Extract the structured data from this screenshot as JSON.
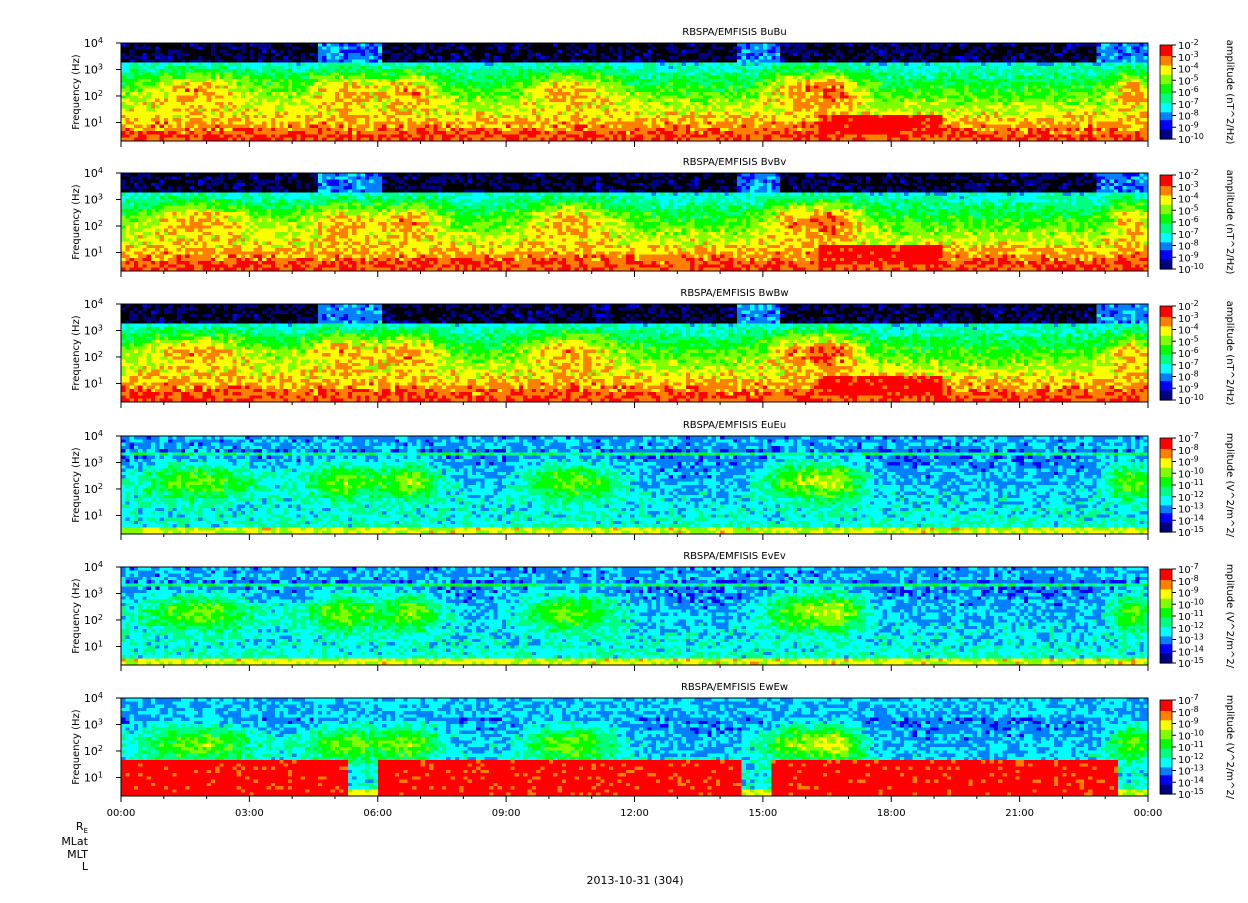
{
  "chart_data": [
    {
      "type": "heatmap",
      "title": "RBSPA/EMFISIS  BuBu",
      "ylabel": "Frequency (Hz)",
      "yscale": "log",
      "ylim": [
        2,
        10000
      ],
      "y_ticks": [
        "10^1",
        "10^2",
        "10^3",
        "10^4"
      ],
      "colorbar_label": "amplitude (nT^2/Hz)",
      "colorbar_ticks": [
        "10^-2",
        "10^-3",
        "10^-4",
        "10^-5",
        "10^-6",
        "10^-7",
        "10^-8",
        "10^-9",
        "10^-10"
      ],
      "colorbar_range": [
        -10,
        -2
      ]
    },
    {
      "type": "heatmap",
      "title": "RBSPA/EMFISIS  BvBv",
      "ylabel": "Frequency (Hz)",
      "yscale": "log",
      "ylim": [
        2,
        10000
      ],
      "y_ticks": [
        "10^1",
        "10^2",
        "10^3",
        "10^4"
      ],
      "colorbar_label": "amplitude (nT^2/Hz)",
      "colorbar_ticks": [
        "10^-2",
        "10^-3",
        "10^-4",
        "10^-5",
        "10^-6",
        "10^-7",
        "10^-8",
        "10^-9",
        "10^-10"
      ],
      "colorbar_range": [
        -10,
        -2
      ]
    },
    {
      "type": "heatmap",
      "title": "RBSPA/EMFISIS  BwBw",
      "ylabel": "Frequency (Hz)",
      "yscale": "log",
      "ylim": [
        2,
        10000
      ],
      "y_ticks": [
        "10^1",
        "10^2",
        "10^3",
        "10^4"
      ],
      "colorbar_label": "amplitude (nT^2/Hz)",
      "colorbar_ticks": [
        "10^-2",
        "10^-3",
        "10^-4",
        "10^-5",
        "10^-6",
        "10^-7",
        "10^-8",
        "10^-9",
        "10^-10"
      ],
      "colorbar_range": [
        -10,
        -2
      ]
    },
    {
      "type": "heatmap",
      "title": "RBSPA/EMFISIS  EuEu",
      "ylabel": "Frequency (Hz)",
      "yscale": "log",
      "ylim": [
        2,
        10000
      ],
      "y_ticks": [
        "10^1",
        "10^2",
        "10^3",
        "10^4"
      ],
      "colorbar_label": "mplitude (V^2/m^2/",
      "colorbar_ticks": [
        "10^-7",
        "10^-8",
        "10^-9",
        "10^-10",
        "10^-11",
        "10^-12",
        "10^-13",
        "10^-14",
        "10^-15"
      ],
      "colorbar_range": [
        -15,
        -7
      ]
    },
    {
      "type": "heatmap",
      "title": "RBSPA/EMFISIS  EvEv",
      "ylabel": "Frequency (Hz)",
      "yscale": "log",
      "ylim": [
        2,
        10000
      ],
      "y_ticks": [
        "10^1",
        "10^2",
        "10^3",
        "10^4"
      ],
      "colorbar_label": "mplitude (V^2/m^2/",
      "colorbar_ticks": [
        "10^-7",
        "10^-8",
        "10^-9",
        "10^-10",
        "10^-11",
        "10^-12",
        "10^-13",
        "10^-14",
        "10^-15"
      ],
      "colorbar_range": [
        -15,
        -7
      ]
    },
    {
      "type": "heatmap",
      "title": "RBSPA/EMFISIS  EwEw",
      "ylabel": "Frequency (Hz)",
      "yscale": "log",
      "ylim": [
        2,
        10000
      ],
      "y_ticks": [
        "10^1",
        "10^2",
        "10^3",
        "10^4"
      ],
      "colorbar_label": "mplitude (V^2/m^2/",
      "colorbar_ticks": [
        "10^-7",
        "10^-8",
        "10^-9",
        "10^-10",
        "10^-11",
        "10^-12",
        "10^-13",
        "10^-14",
        "10^-15"
      ],
      "colorbar_range": [
        -15,
        -7
      ]
    }
  ],
  "x_axis": {
    "tick_labels": [
      "00:00",
      "03:00",
      "06:00",
      "09:00",
      "12:00",
      "15:00",
      "18:00",
      "21:00",
      "00:00"
    ],
    "range_hours": [
      0,
      24
    ]
  },
  "ephemeris_labels": [
    "R_E",
    "MLat",
    "MLT",
    "L"
  ],
  "date_label": "2013-10-31 (304)",
  "colormap": [
    "#000080",
    "#0000ff",
    "#0080ff",
    "#00ffff",
    "#00ff80",
    "#00ff00",
    "#80ff00",
    "#ffff00",
    "#ff8000",
    "#ff0000"
  ]
}
